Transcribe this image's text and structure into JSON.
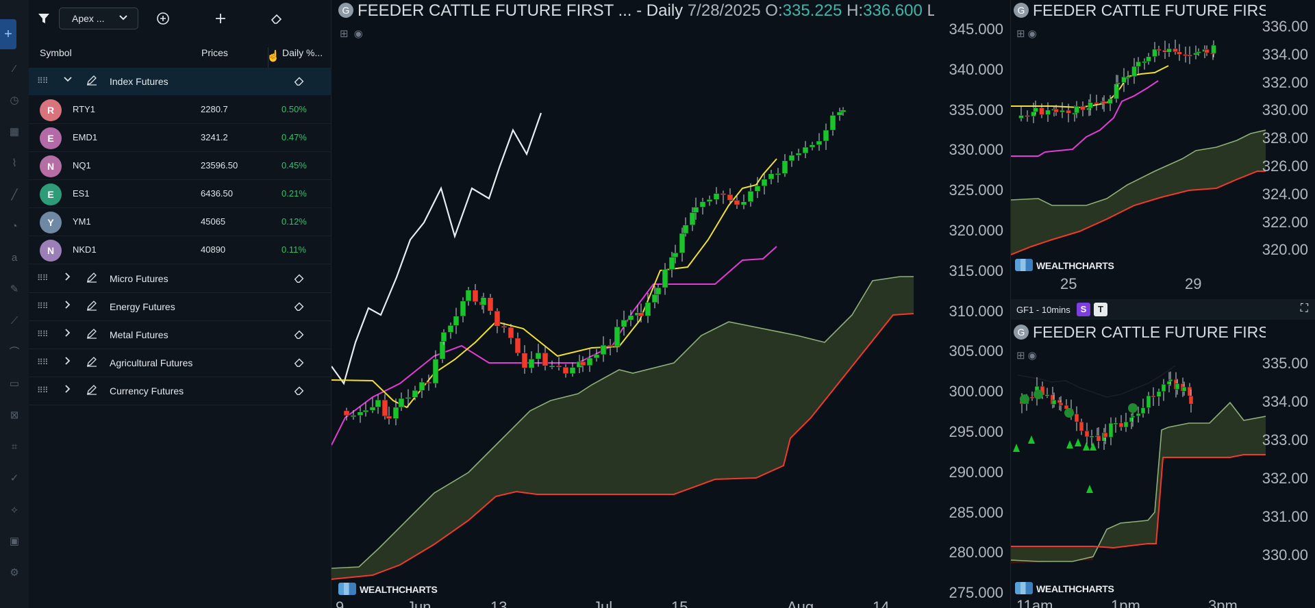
{
  "watchlist": {
    "list_name": "Apex ...",
    "columns": {
      "symbol": "Symbol",
      "prices": "Prices",
      "daily": "Daily %..."
    },
    "groups": [
      {
        "name": "Index Futures",
        "expanded": true,
        "rows": [
          {
            "initial": "R",
            "symbol": "RTY1",
            "price": "2280.7",
            "daily": "0.50%",
            "color": "#d9747d"
          },
          {
            "initial": "E",
            "symbol": "EMD1",
            "price": "3241.2",
            "daily": "0.47%",
            "color": "#b46aa6"
          },
          {
            "initial": "N",
            "symbol": "NQ1",
            "price": "23596.50",
            "daily": "0.45%",
            "color": "#b56ea4"
          },
          {
            "initial": "E",
            "symbol": "ES1",
            "price": "6436.50",
            "daily": "0.21%",
            "color": "#2e9b79"
          },
          {
            "initial": "Y",
            "symbol": "YM1",
            "price": "45065",
            "daily": "0.12%",
            "color": "#6f88a4"
          },
          {
            "initial": "N",
            "symbol": "NKD1",
            "price": "40890",
            "daily": "0.11%",
            "color": "#9c7fb6"
          }
        ]
      },
      {
        "name": "Micro Futures",
        "expanded": false
      },
      {
        "name": "Energy Futures",
        "expanded": false
      },
      {
        "name": "Metal Futures",
        "expanded": false
      },
      {
        "name": "Agricultural Futures",
        "expanded": false
      },
      {
        "name": "Currency Futures",
        "expanded": false
      }
    ]
  },
  "main_chart": {
    "title": "FEEDER CATTLE FUTURE FIRST ... - Daily",
    "badge": "G",
    "date": "7/28/2025",
    "o_label": "O:",
    "o_value": "335.225",
    "h_label": "H:",
    "h_value": "336.600",
    "l_label": "L",
    "y_ticks": [
      "345.000",
      "340.000",
      "335.000",
      "330.000",
      "325.000",
      "320.000",
      "315.000",
      "310.000",
      "305.000",
      "300.000",
      "295.000",
      "290.000",
      "285.000",
      "280.000",
      "275.000"
    ],
    "x_ticks": [
      "9",
      "Jun",
      "13",
      "Jul",
      "15",
      "Aug",
      "14"
    ],
    "watermark": "WEALTHCHARTS"
  },
  "top_right_chart": {
    "title": "FEEDER CATTLE FUTURE FIRS",
    "badge": "G",
    "y_ticks": [
      "336.00",
      "334.00",
      "332.00",
      "330.00",
      "328.00",
      "326.00",
      "324.00",
      "322.00",
      "320.00"
    ],
    "x_ticks": [
      "25",
      "29"
    ],
    "watermark": "WEALTHCHARTS"
  },
  "bottom_right_chart": {
    "timeframe_label": "GF1 - 10mins",
    "pill_s": "S",
    "pill_t": "T",
    "title": "FEEDER CATTLE FUTURE FIRS",
    "badge": "G",
    "y_ticks": [
      "335.00",
      "334.00",
      "333.00",
      "332.00",
      "331.00",
      "330.00"
    ],
    "x_ticks": [
      "11am",
      "1pm",
      "3pm"
    ],
    "watermark": "WEALTHCHARTS"
  },
  "colors": {
    "up": "#19c42a",
    "down": "#f23a2a",
    "accent": "#3fb6a8",
    "yellow": "#f0e130",
    "magenta": "#e43cd6",
    "cloud": "#2a3a24"
  },
  "icons": {
    "filter": "filter-icon",
    "add_circle": "add-circle-icon",
    "add": "plus-icon",
    "eraser": "eraser-icon"
  }
}
